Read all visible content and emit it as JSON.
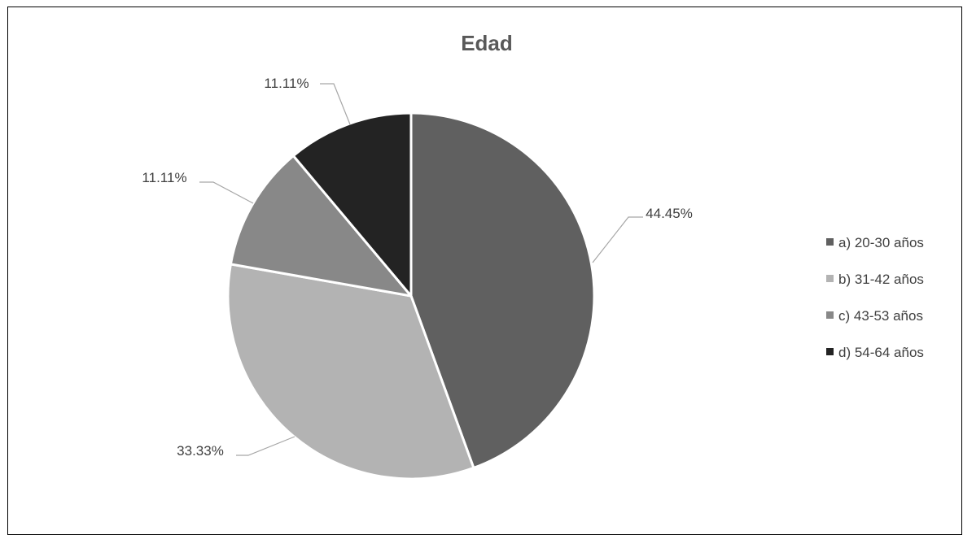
{
  "chart_data": {
    "type": "pie",
    "title": "Edad",
    "categories": [
      "a) 20-30 años",
      "b) 31-42 años",
      "c) 43-53 años",
      "d) 54-64 años"
    ],
    "values": [
      44.45,
      33.33,
      11.11,
      11.11
    ],
    "data_labels": [
      "44.45%",
      "33.33%",
      "11.11%",
      "11.11%"
    ],
    "colors": [
      "#606060",
      "#b3b3b3",
      "#888888",
      "#232323"
    ],
    "legend_position": "right",
    "start_angle": "top, clockwise"
  }
}
